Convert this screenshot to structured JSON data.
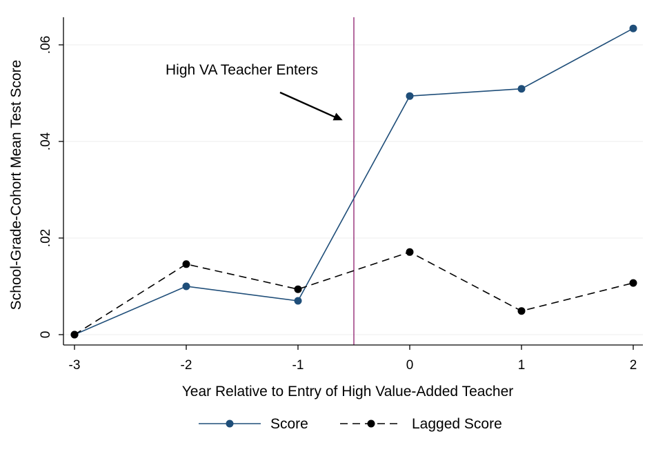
{
  "chart_data": {
    "type": "line",
    "title": "",
    "xlabel": "Year Relative to Entry of High Value-Added Teacher",
    "ylabel": "School-Grade-Cohort Mean Test Score",
    "x": [
      -3,
      -2,
      -1,
      0,
      1,
      2
    ],
    "x_tick_labels": [
      "-3",
      "-2",
      "-1",
      "0",
      "1",
      "2"
    ],
    "y_ticks": [
      0,
      0.02,
      0.04,
      0.06
    ],
    "y_tick_labels": [
      "0",
      ".02",
      ".04",
      ".06"
    ],
    "xlim": [
      -3,
      2
    ],
    "ylim": [
      0,
      0.065
    ],
    "grid": "horizontal",
    "legend_position": "bottom",
    "series": [
      {
        "name": "Score",
        "values": [
          0.0,
          0.01,
          0.007,
          0.0494,
          0.0509,
          0.0634
        ],
        "color": "#1f4e79",
        "style": "solid",
        "marker": "circle"
      },
      {
        "name": "Lagged Score",
        "values": [
          0.0,
          0.0146,
          0.0094,
          0.0171,
          0.0049,
          0.0107
        ],
        "color": "#000000",
        "style": "dashed",
        "marker": "circle"
      }
    ],
    "reference_line": {
      "x": -0.5,
      "color": "#8b1a6b"
    },
    "annotation": {
      "text": "High VA Teacher Enters",
      "arrow_to_x": -0.6,
      "arrow_to_y": 0.0444
    }
  }
}
